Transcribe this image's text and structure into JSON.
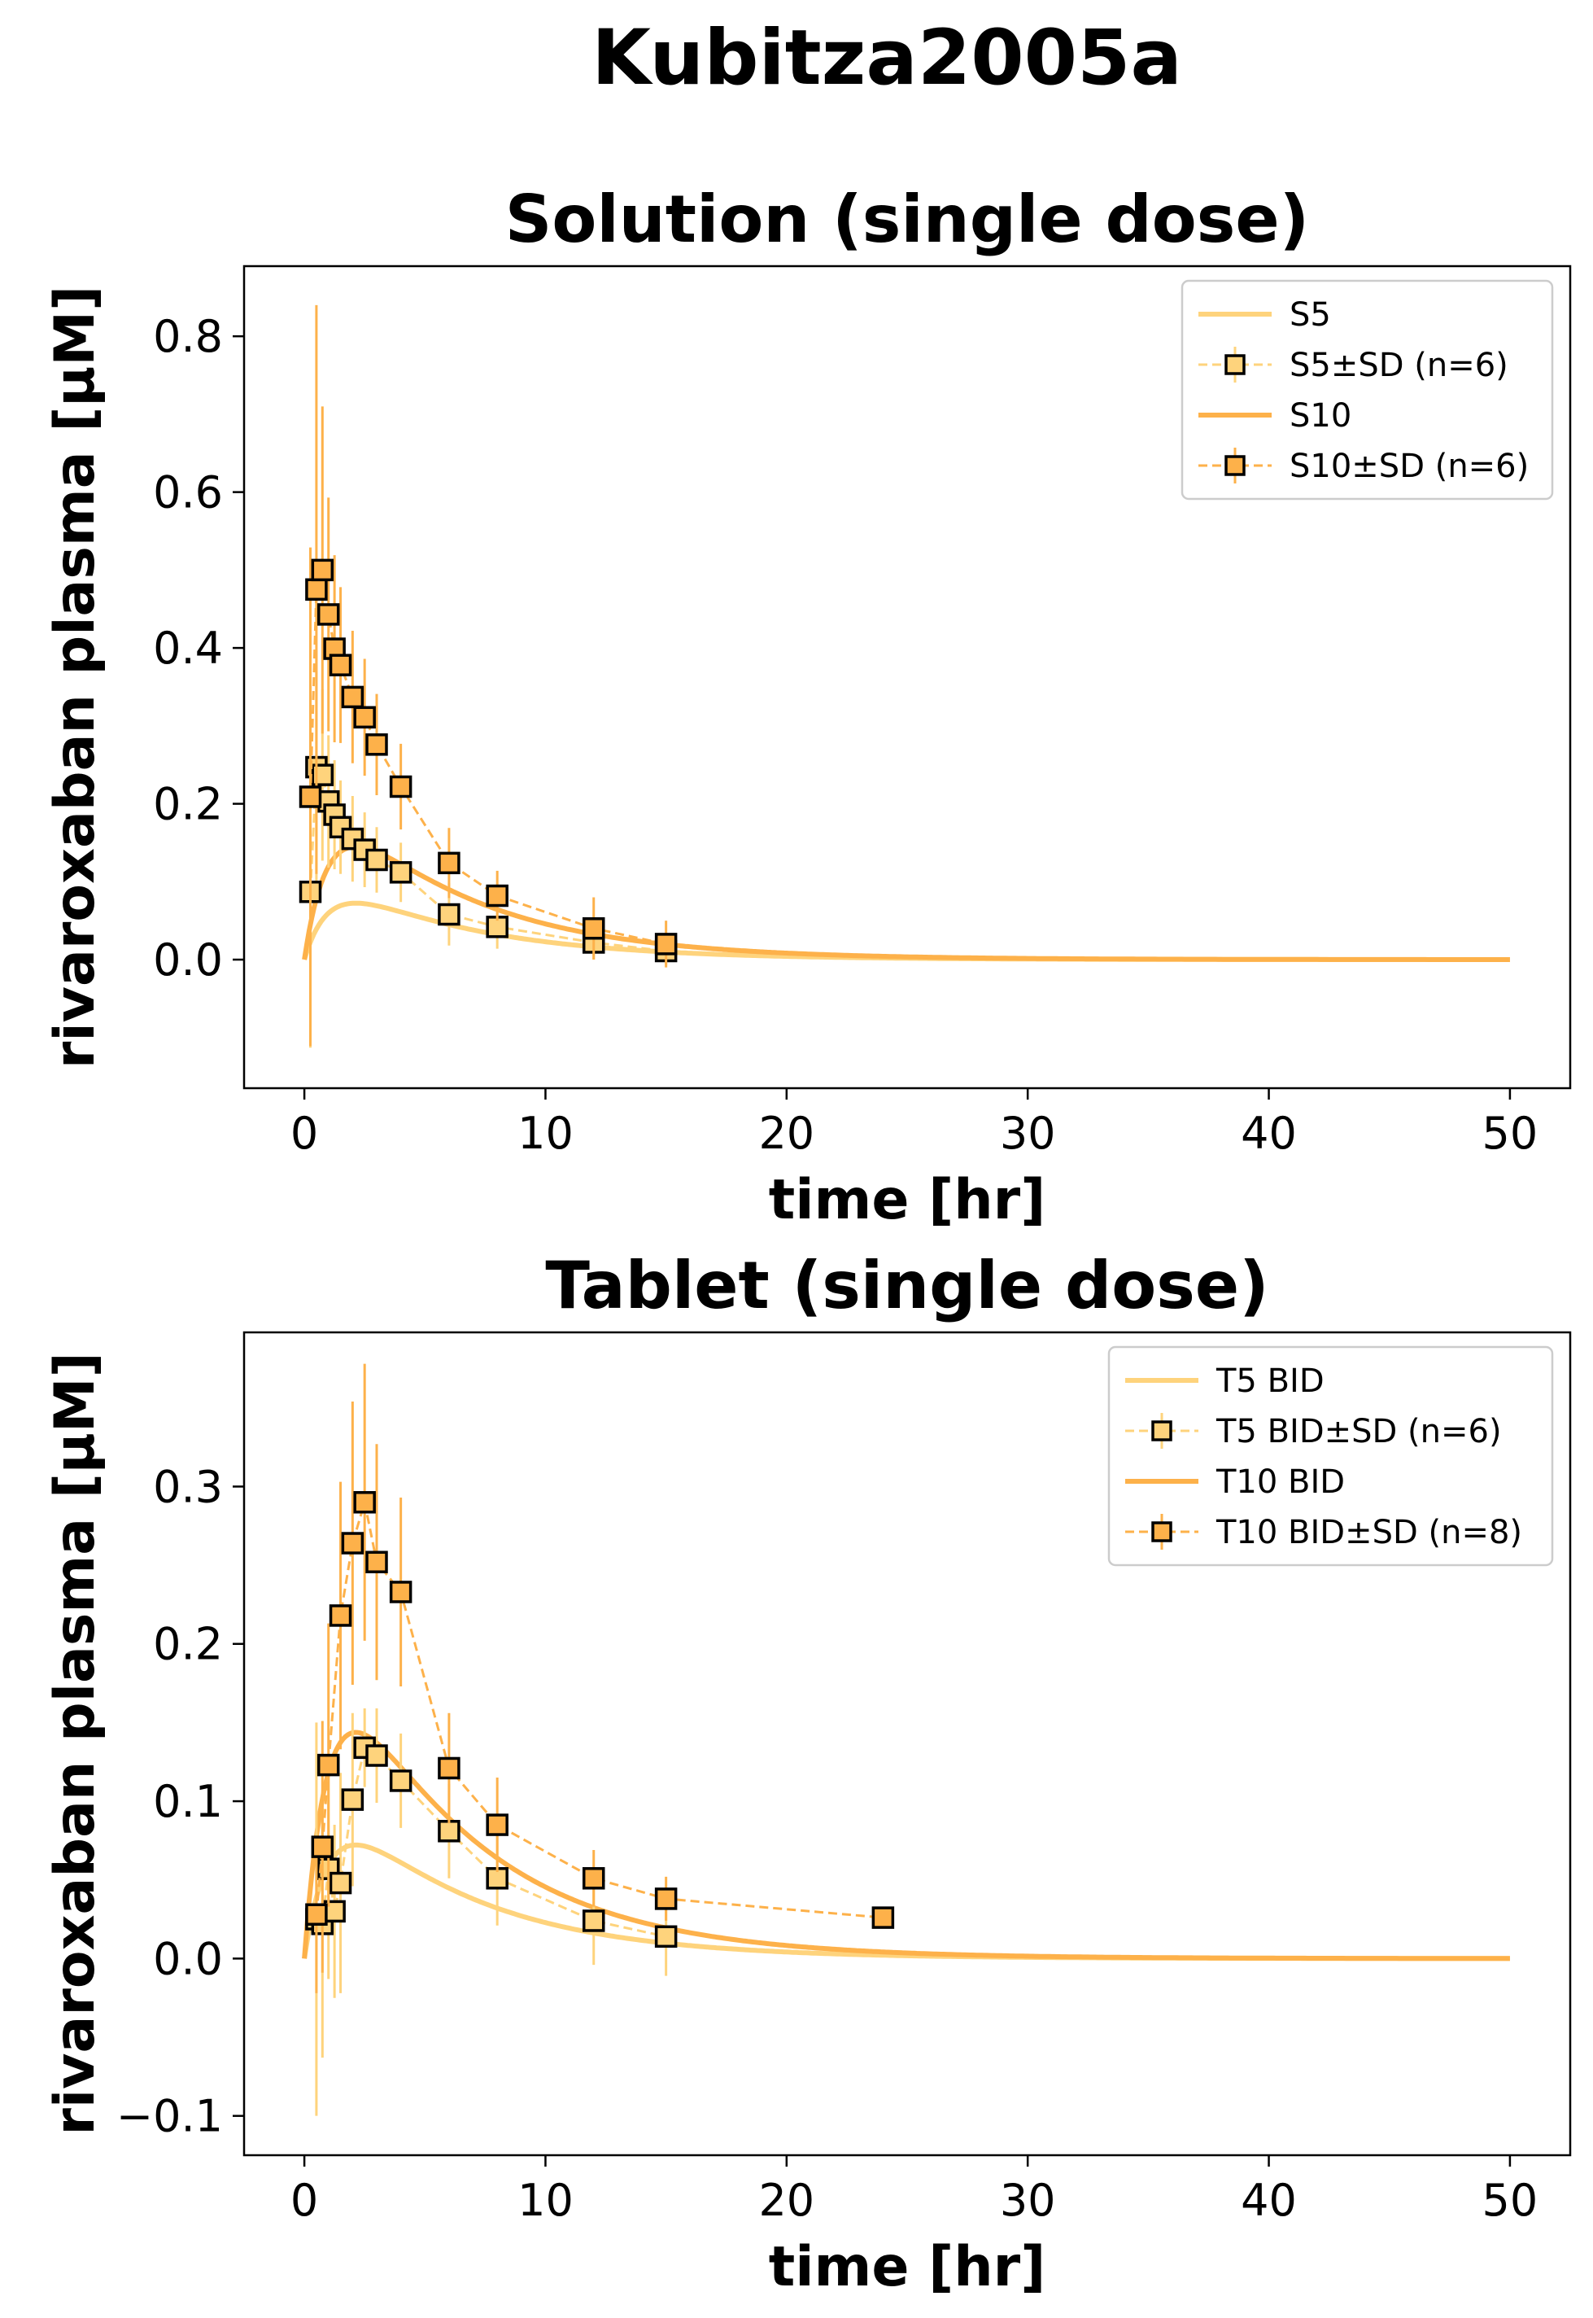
{
  "figure": {
    "suptitle": "Kubitza2005a"
  },
  "colors": {
    "light": "#fed37c",
    "dark": "#fdb14a",
    "marker_edge": "#000000"
  },
  "chart_data": [
    {
      "type": "line",
      "title": "Solution (single dose)",
      "xlabel": "time [hr]",
      "ylabel": "rivaroxaban plasma [µM]",
      "xlim": [
        -2.5,
        52.5
      ],
      "ylim": [
        -0.165,
        0.89
      ],
      "xticks": [
        0,
        10,
        20,
        30,
        40,
        50
      ],
      "yticks": [
        0.0,
        0.2,
        0.4,
        0.6,
        0.8
      ],
      "ytick_labels": [
        "0.0",
        "0.2",
        "0.4",
        "0.6",
        "0.8"
      ],
      "grid": false,
      "legend_position": "top-right",
      "series": [
        {
          "name": "S5",
          "kind": "sim",
          "color": "#fed37c",
          "curve": {
            "amp": 0.1255,
            "ka": 1.0,
            "ke": 0.17
          }
        },
        {
          "name": "S5±SD (n=6)",
          "kind": "data",
          "color": "#fed37c",
          "x": [
            0.25,
            0.5,
            0.75,
            1.0,
            1.25,
            1.5,
            2.0,
            2.5,
            3.0,
            4.0,
            6.0,
            8.0,
            12.0,
            15.0
          ],
          "y": [
            0.087,
            0.247,
            0.237,
            0.203,
            0.186,
            0.17,
            0.155,
            0.141,
            0.128,
            0.112,
            0.058,
            0.042,
            0.022,
            0.011
          ],
          "sd": [
            0.2,
            0.15,
            0.11,
            0.085,
            0.07,
            0.06,
            0.055,
            0.048,
            0.042,
            0.038,
            0.04,
            0.028,
            0.022,
            0.018
          ]
        },
        {
          "name": "S10",
          "kind": "sim",
          "color": "#fdb14a",
          "curve": {
            "amp": 0.251,
            "ka": 1.0,
            "ke": 0.17
          }
        },
        {
          "name": "S10±SD (n=6)",
          "kind": "data",
          "color": "#fdb14a",
          "x": [
            0.25,
            0.5,
            0.75,
            1.0,
            1.25,
            1.5,
            2.0,
            2.5,
            3.0,
            4.0,
            6.0,
            8.0,
            12.0,
            15.0
          ],
          "y": [
            0.209,
            0.475,
            0.5,
            0.443,
            0.399,
            0.378,
            0.337,
            0.311,
            0.276,
            0.222,
            0.124,
            0.082,
            0.04,
            0.02
          ],
          "sd": [
            0.32,
            0.365,
            0.21,
            0.15,
            0.12,
            0.1,
            0.085,
            0.075,
            0.065,
            0.055,
            0.045,
            0.032,
            0.04,
            0.03
          ]
        }
      ]
    },
    {
      "type": "line",
      "title": "Tablet (single dose)",
      "xlabel": "time [hr]",
      "ylabel": "rivaroxaban plasma [µM]",
      "xlim": [
        -2.5,
        52.5
      ],
      "ylim": [
        -0.125,
        0.398
      ],
      "xticks": [
        0,
        10,
        20,
        30,
        40,
        50
      ],
      "yticks": [
        -0.1,
        0.0,
        0.1,
        0.2,
        0.3
      ],
      "ytick_labels": [
        "−0.1",
        "0.0",
        "0.1",
        "0.2",
        "0.3"
      ],
      "grid": false,
      "legend_position": "top-right",
      "series": [
        {
          "name": "T5 BID",
          "kind": "sim",
          "color": "#fed37c",
          "curve": {
            "amp": 0.125,
            "ka": 1.0,
            "ke": 0.17
          }
        },
        {
          "name": "T5 BID±SD (n=6)",
          "kind": "data",
          "color": "#fed37c",
          "x": [
            0.5,
            0.75,
            1.0,
            1.25,
            1.5,
            2.0,
            2.5,
            3.0,
            4.0,
            6.0,
            8.0,
            12.0,
            15.0
          ],
          "y": [
            0.025,
            0.022,
            0.057,
            0.03,
            0.048,
            0.101,
            0.134,
            0.129,
            0.113,
            0.081,
            0.051,
            0.024,
            0.014
          ],
          "sd": [
            0.125,
            0.085,
            0.07,
            0.055,
            0.07,
            0.055,
            0.025,
            0.03,
            0.03,
            0.03,
            0.03,
            0.028,
            0.025
          ]
        },
        {
          "name": "T10 BID",
          "kind": "sim",
          "color": "#fdb14a",
          "curve": {
            "amp": 0.249,
            "ka": 1.0,
            "ke": 0.17
          }
        },
        {
          "name": "T10 BID±SD (n=8)",
          "kind": "data",
          "color": "#fdb14a",
          "x": [
            0.5,
            0.75,
            1.0,
            1.5,
            2.0,
            2.5,
            3.0,
            4.0,
            6.0,
            8.0,
            12.0,
            15.0,
            24.0
          ],
          "y": [
            0.028,
            0.071,
            0.123,
            0.218,
            0.264,
            0.29,
            0.252,
            0.233,
            0.121,
            0.085,
            0.051,
            0.038,
            0.026
          ],
          "sd": [
            0.05,
            0.08,
            0.09,
            0.085,
            0.09,
            0.088,
            0.075,
            0.06,
            0.035,
            0.03,
            0.018,
            0.014,
            0.0
          ]
        }
      ]
    }
  ]
}
